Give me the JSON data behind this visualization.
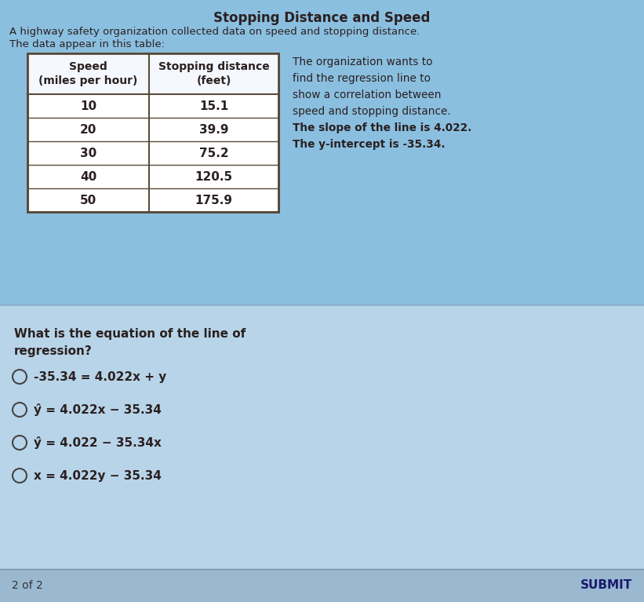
{
  "title": "Stopping Distance and Speed",
  "intro_line1": "A highway safety organization collected data on speed and stopping distance.",
  "intro_line2": "The data appear in this table:",
  "table_headers_col1": "Speed\n(miles per hour)",
  "table_headers_col2": "Stopping distance\n(feet)",
  "table_data": [
    [
      10,
      15.1
    ],
    [
      20,
      39.9
    ],
    [
      30,
      75.2
    ],
    [
      40,
      120.5
    ],
    [
      50,
      175.9
    ]
  ],
  "side_text_lines": [
    "The organization wants to",
    "find the regression line to",
    "show a correlation between",
    "speed and stopping distance.",
    "The slope of the line is 4.022.",
    "The y-intercept is -35.34."
  ],
  "question_line1": "What is the equation of the line of",
  "question_line2": "regression?",
  "choices": [
    "-35.34 = 4.022x + y",
    "ŷ = 4.022x − 35.34",
    "ŷ = 4.022 − 35.34x",
    "x = 4.022y − 35.34"
  ],
  "footer_left": "2 of 2",
  "footer_right": "SUBMIT",
  "bg_top_color": "#8bbfe0",
  "bg_bottom_color": "#b8d4e8",
  "table_border_color": "#5a4a3a",
  "table_bg": "#f0f4fa",
  "header_bg": "#e8eef8",
  "text_color": "#1a1a1a",
  "dark_text": "#2a2020",
  "submit_color": "#1a1a6e"
}
